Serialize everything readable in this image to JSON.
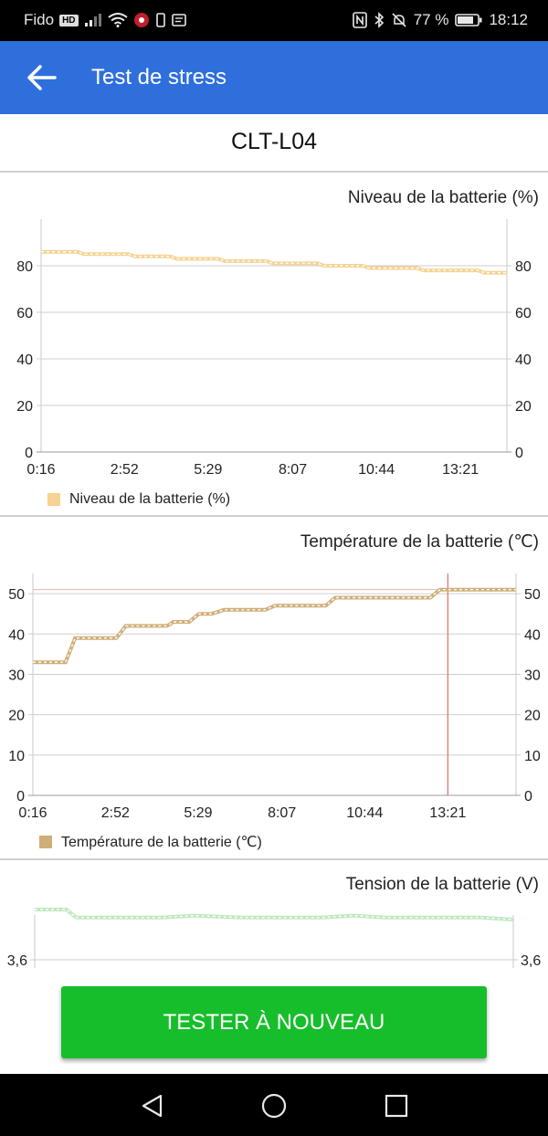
{
  "status_bar": {
    "carrier": "Fido",
    "hd": "HD",
    "battery_percent": "77 %",
    "time": "18:12"
  },
  "app_bar": {
    "title": "Test de stress"
  },
  "device": {
    "name": "CLT-L04"
  },
  "charts": {
    "battery_level": {
      "title": "Niveau de la batterie (%)",
      "legend": "Niveau de la batterie (%)",
      "color": "#f6d392"
    },
    "battery_temp": {
      "title": "Température de la batterie (℃)",
      "legend": "Température de la batterie (℃)",
      "color": "#d7b57e"
    },
    "battery_voltage": {
      "title": "Tension de la batterie (V)",
      "color": "#bfe8bf"
    }
  },
  "chart_data": [
    {
      "type": "line",
      "title": "Niveau de la batterie (%)",
      "x": [
        "0:16",
        "2:52",
        "5:29",
        "8:07",
        "10:44",
        "13:21"
      ],
      "x_minutes": [
        0.27,
        2.87,
        5.48,
        8.12,
        10.73,
        13.35
      ],
      "xlim_minutes": [
        0.27,
        14.8
      ],
      "ylim": [
        0,
        100
      ],
      "yticks": [
        0,
        20,
        40,
        60,
        80
      ],
      "legend": "bottom-left",
      "series": [
        {
          "name": "Niveau de la batterie (%)",
          "points": [
            [
              0.27,
              86
            ],
            [
              1.4,
              86
            ],
            [
              1.6,
              85
            ],
            [
              3.0,
              85
            ],
            [
              3.2,
              84
            ],
            [
              4.3,
              84
            ],
            [
              4.5,
              83
            ],
            [
              5.8,
              83
            ],
            [
              6.0,
              82
            ],
            [
              7.3,
              82
            ],
            [
              7.5,
              81
            ],
            [
              8.9,
              81
            ],
            [
              9.1,
              80
            ],
            [
              10.3,
              80
            ],
            [
              10.5,
              79
            ],
            [
              12.0,
              79
            ],
            [
              12.2,
              78
            ],
            [
              13.9,
              78
            ],
            [
              14.1,
              77
            ],
            [
              14.8,
              77
            ]
          ]
        }
      ]
    },
    {
      "type": "line",
      "title": "Température de la batterie (℃)",
      "x": [
        "0:16",
        "2:52",
        "5:29",
        "8:07",
        "10:44",
        "13:21"
      ],
      "x_minutes": [
        0.27,
        2.87,
        5.48,
        8.12,
        10.73,
        13.35
      ],
      "xlim_minutes": [
        0.27,
        15.5
      ],
      "ylim": [
        0,
        55
      ],
      "yticks": [
        0,
        10,
        20,
        30,
        40,
        50
      ],
      "max_line": 51,
      "cursor_x_minutes": 13.35,
      "legend": "bottom-left",
      "series": [
        {
          "name": "Température de la batterie (℃)",
          "points": [
            [
              0.27,
              33
            ],
            [
              1.3,
              33
            ],
            [
              1.6,
              39
            ],
            [
              2.9,
              39
            ],
            [
              3.2,
              42
            ],
            [
              4.5,
              42
            ],
            [
              4.7,
              43
            ],
            [
              5.2,
              43
            ],
            [
              5.5,
              45
            ],
            [
              5.9,
              45
            ],
            [
              6.3,
              46
            ],
            [
              7.6,
              46
            ],
            [
              7.9,
              47
            ],
            [
              9.5,
              47
            ],
            [
              9.8,
              49
            ],
            [
              12.8,
              49
            ],
            [
              13.1,
              51
            ],
            [
              15.5,
              51
            ]
          ]
        }
      ]
    },
    {
      "type": "line",
      "title": "Tension de la batterie (V)",
      "yticks": [
        3.6
      ],
      "series": [
        {
          "name": "Tension de la batterie (V)",
          "points": [
            [
              0,
              3.85
            ],
            [
              1,
              3.85
            ],
            [
              1.3,
              3.81
            ],
            [
              4,
              3.81
            ],
            [
              5,
              3.82
            ],
            [
              6.5,
              3.81
            ],
            [
              9,
              3.81
            ],
            [
              10,
              3.82
            ],
            [
              11,
              3.81
            ],
            [
              14,
              3.81
            ],
            [
              15,
              3.8
            ]
          ]
        }
      ]
    }
  ],
  "actions": {
    "retest_label": "TESTER À NOUVEAU"
  },
  "icons": {
    "back": "arrow-left-icon",
    "nav_back": "triangle-back-icon",
    "nav_home": "circle-home-icon",
    "nav_recents": "square-recents-icon"
  }
}
